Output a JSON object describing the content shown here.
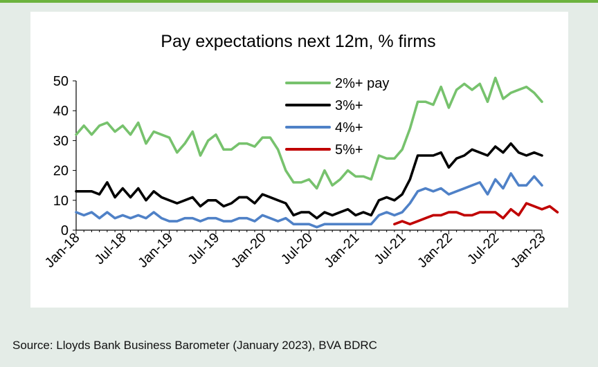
{
  "source": "Source: Lloyds Bank Business Barometer (January 2023), BVA BDRC",
  "chart_data": {
    "type": "line",
    "title": "Pay expectations next 12m, % firms",
    "xlabel": "",
    "ylabel": "",
    "ylim": [
      0,
      50
    ],
    "yticks": [
      0,
      10,
      20,
      30,
      40,
      50
    ],
    "xtick_labels": [
      "Jan-18",
      "Jul-18",
      "Jan-19",
      "Jul-19",
      "Jan-20",
      "Jul-20",
      "Jan-21",
      "Jul-21",
      "Jan-22",
      "Jul-22",
      "Jan-23"
    ],
    "x_start": "Jan-18",
    "x_end": "Jan-23",
    "grid": false,
    "legend_position": "top-center",
    "series": [
      {
        "name": "2%+ pay",
        "color": "#77c26d",
        "start": "Jan-18",
        "values": [
          32,
          35,
          32,
          35,
          36,
          33,
          35,
          32,
          36,
          29,
          33,
          32,
          31,
          26,
          29,
          33,
          25,
          30,
          32,
          27,
          27,
          29,
          29,
          28,
          31,
          31,
          27,
          20,
          16,
          16,
          17,
          14,
          20,
          15,
          17,
          20,
          18,
          18,
          17,
          25,
          24,
          24,
          27,
          34,
          43,
          43,
          42,
          48,
          41,
          47,
          49,
          47,
          49,
          43,
          51,
          44,
          46,
          47,
          48,
          46,
          43
        ]
      },
      {
        "name": "3%+",
        "color": "#000000",
        "start": "Jan-18",
        "values": [
          13,
          13,
          13,
          12,
          16,
          11,
          14,
          11,
          14,
          10,
          13,
          11,
          10,
          9,
          10,
          11,
          8,
          10,
          10,
          8,
          9,
          11,
          11,
          9,
          12,
          11,
          10,
          9,
          5,
          6,
          6,
          4,
          6,
          5,
          6,
          7,
          5,
          6,
          5,
          10,
          11,
          10,
          12,
          17,
          25,
          25,
          25,
          26,
          21,
          24,
          25,
          27,
          26,
          25,
          28,
          26,
          29,
          26,
          25,
          26,
          25
        ]
      },
      {
        "name": "4%+",
        "color": "#4f81c7",
        "start": "Jan-18",
        "values": [
          6,
          5,
          6,
          4,
          6,
          4,
          5,
          4,
          5,
          4,
          6,
          4,
          3,
          3,
          4,
          4,
          3,
          4,
          4,
          3,
          3,
          4,
          4,
          3,
          5,
          4,
          3,
          4,
          2,
          2,
          2,
          1,
          2,
          2,
          2,
          2,
          2,
          2,
          2,
          5,
          6,
          5,
          6,
          9,
          13,
          14,
          13,
          14,
          12,
          13,
          14,
          15,
          16,
          12,
          17,
          14,
          19,
          15,
          15,
          18,
          15
        ]
      },
      {
        "name": "5%+",
        "color": "#c00000",
        "start": "Jun-21",
        "values": [
          2,
          3,
          2,
          3,
          4,
          5,
          5,
          6,
          6,
          5,
          5,
          6,
          6,
          6,
          4,
          7,
          5,
          9,
          8,
          7,
          8,
          6
        ]
      }
    ]
  }
}
